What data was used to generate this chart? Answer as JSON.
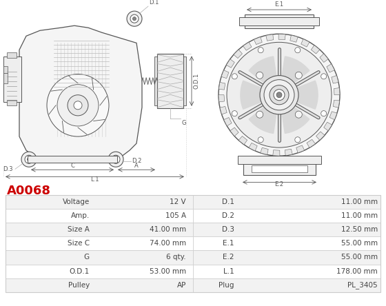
{
  "title_code": "A0068",
  "title_color": "#cc0000",
  "table_data": [
    [
      "Voltage",
      "12 V",
      "D.1",
      "11.00 mm"
    ],
    [
      "Amp.",
      "105 A",
      "D.2",
      "11.00 mm"
    ],
    [
      "Size A",
      "41.00 mm",
      "D.3",
      "12.50 mm"
    ],
    [
      "Size C",
      "74.00 mm",
      "E.1",
      "55.00 mm"
    ],
    [
      "G",
      "6 qty.",
      "E.2",
      "55.00 mm"
    ],
    [
      "O.D.1",
      "53.00 mm",
      "L.1",
      "178.00 mm"
    ],
    [
      "Pulley",
      "AP",
      "Plug",
      "PL_3405"
    ]
  ],
  "row_bg_odd": "#f2f2f2",
  "row_bg_even": "#ffffff",
  "border_color": "#cccccc",
  "text_color": "#444444",
  "font_size": 7.5,
  "background_color": "#ffffff",
  "line_color": "#aaaaaa",
  "dark_color": "#555555"
}
